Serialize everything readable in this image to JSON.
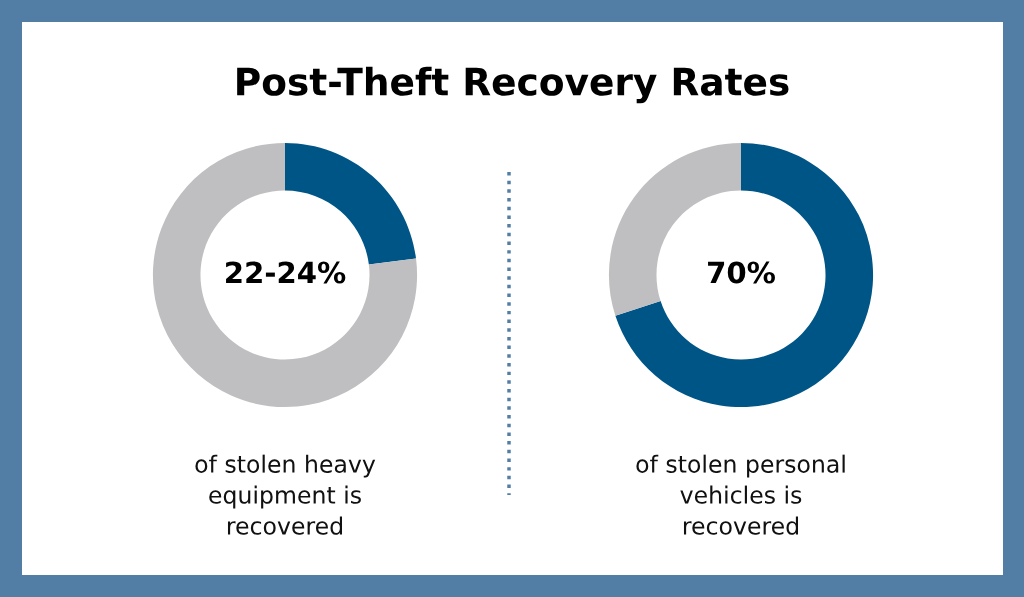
{
  "chart_data": [
    {
      "type": "donut",
      "title": "Post-Theft Recovery Rates",
      "categories": [
        null,
        null
      ],
      "values": [
        23,
        77
      ],
      "colors": [
        "#005587",
        "#bfbfc1"
      ],
      "annotations": [
        "22-24%",
        "of stolen heavy\nequipment is\nrecovered"
      ]
    },
    {
      "type": "donut",
      "categories": [
        null,
        null
      ],
      "values": [
        70,
        30
      ],
      "colors": [
        "#005587",
        "#bfbfc1"
      ],
      "annotations": [
        "70%",
        "of stolen personal\nvehicles is\nrecovered"
      ]
    }
  ]
}
